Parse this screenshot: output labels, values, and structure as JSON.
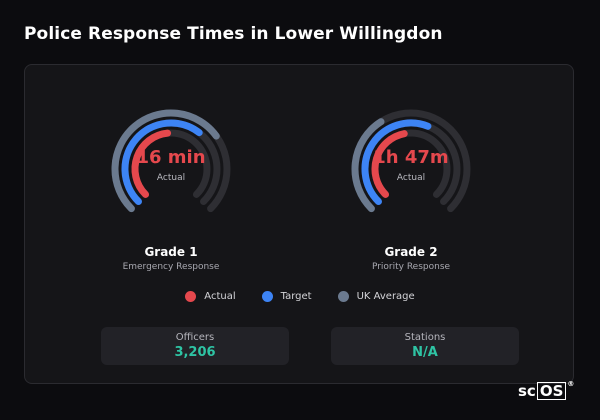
{
  "page": {
    "title": "Police Response Times in Lower Willingdon"
  },
  "colors": {
    "actual": "#e5484d",
    "target": "#3d84f5",
    "uk_average": "#6b7a8f",
    "track": "#2e2e33",
    "stat_value": "#2ec4a4"
  },
  "gauges": [
    {
      "value": "16 min",
      "sub": "Actual",
      "title": "Grade 1",
      "caption": "Emergency Response",
      "fractions": {
        "uk_average": 0.7,
        "target": 0.64,
        "actual": 0.48
      }
    },
    {
      "value": "1h 47m",
      "sub": "Actual",
      "title": "Grade 2",
      "caption": "Priority Response",
      "fractions": {
        "uk_average": 0.38,
        "target": 0.58,
        "actual": 0.46
      }
    }
  ],
  "legend": [
    {
      "label": "Actual",
      "color": "#e5484d"
    },
    {
      "label": "Target",
      "color": "#3d84f5"
    },
    {
      "label": "UK Average",
      "color": "#6b7a8f"
    }
  ],
  "stats": [
    {
      "label": "Officers",
      "value": "3,206"
    },
    {
      "label": "Stations",
      "value": "N/A"
    }
  ],
  "brand": {
    "prefix": "sc",
    "boxed": "OS",
    "mark": "®"
  }
}
